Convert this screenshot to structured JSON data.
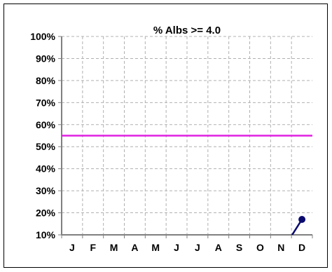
{
  "chart_data": {
    "type": "line",
    "title": "%  Albs >= 4.0",
    "xlabel": "",
    "ylabel": "",
    "categories": [
      "J",
      "F",
      "M",
      "A",
      "M",
      "J",
      "J",
      "A",
      "S",
      "O",
      "N",
      "D"
    ],
    "yticks": [
      "10%",
      "20%",
      "30%",
      "40%",
      "50%",
      "60%",
      "70%",
      "80%",
      "90%",
      "100%"
    ],
    "ylim": [
      10,
      100
    ],
    "grid": true,
    "target_line": {
      "value": 55,
      "color": "#e020e0"
    },
    "series": [
      {
        "color": "#0a0a6e",
        "points": [
          {
            "x": "N",
            "y": 2
          },
          {
            "x": "D",
            "y": 17
          }
        ]
      }
    ]
  }
}
